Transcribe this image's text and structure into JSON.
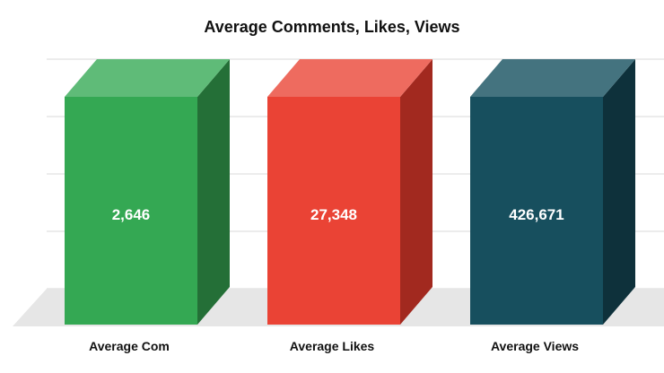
{
  "chart_data": {
    "type": "bar",
    "title": "Average Comments, Likes, Views",
    "categories": [
      "Average Com",
      "Average Likes",
      "Average Views"
    ],
    "values": [
      2646,
      27348,
      426671
    ],
    "value_labels": [
      "2,646",
      "27,348",
      "426,671"
    ],
    "style": "3d-columns",
    "grid": true,
    "colors": {
      "front": [
        "#34a853",
        "#ea4335",
        "#174f5e"
      ],
      "top": [
        "#5fbb78",
        "#ee6b5f",
        "#44737f"
      ],
      "side": [
        "#246f37",
        "#a2291f",
        "#0e313b"
      ],
      "floor": "#e6e6e6",
      "gridline": "#d9d9d9"
    }
  }
}
